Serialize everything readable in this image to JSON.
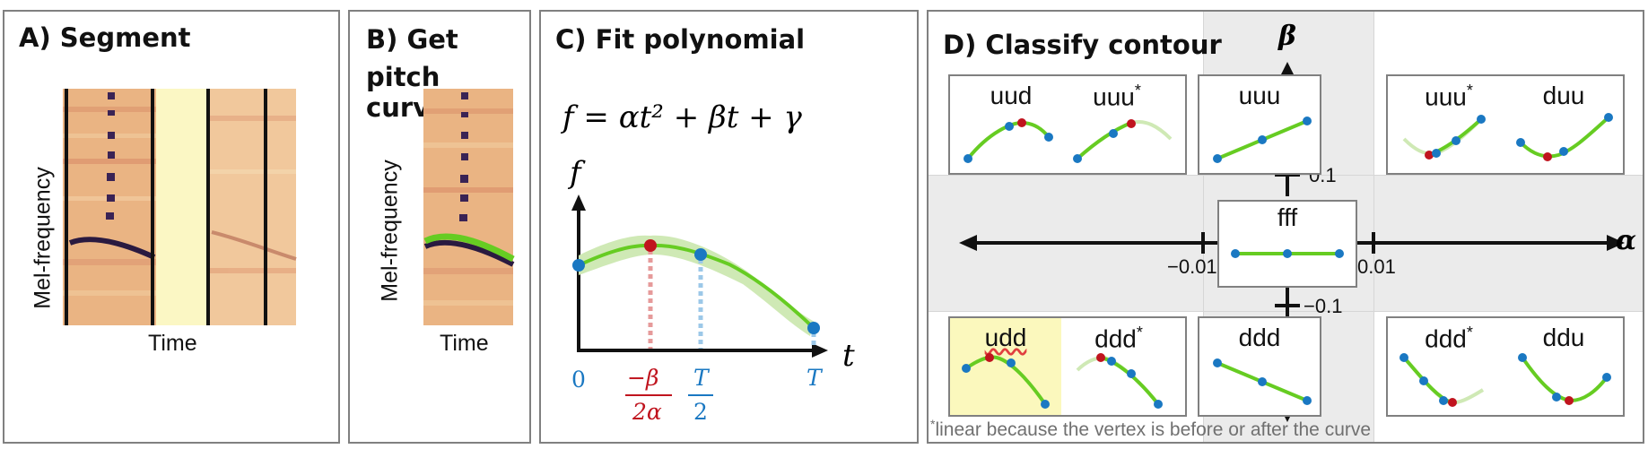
{
  "panels": {
    "a": {
      "title": "A) Segment",
      "ylabel": "Mel-frequency",
      "xlabel": "Time"
    },
    "b": {
      "title_line1": "B) Get",
      "title_line2": "pitch curve",
      "ylabel": "Mel-frequency",
      "xlabel": "Time"
    },
    "c": {
      "title": "C) Fit polynomial",
      "equation": "f = αt² + βt + γ",
      "axis_f": "f",
      "axis_t": "t",
      "tick_zero": "0",
      "tick_vertex_num": "−β",
      "tick_vertex_den": "2α",
      "tick_half_num": "T",
      "tick_half_den": "2",
      "tick_end": "T",
      "colors": {
        "curve": "#66cc22",
        "band": "#cfe9b5",
        "blue": "#1a78c2",
        "red": "#c0141e"
      }
    },
    "d": {
      "title": "D) Classify contour",
      "axis_alpha": "α",
      "axis_beta": "β",
      "tick_alpha_neg": "−0.01",
      "tick_alpha_pos": "0.01",
      "tick_beta_pos": "0.1",
      "tick_beta_neg": "−0.1",
      "cells": {
        "top_left_a": "uud",
        "top_left_b": "uuu",
        "top_left_b_mark": "*",
        "top_center": "uuu",
        "top_right_a": "uuu",
        "top_right_a_mark": "*",
        "top_right_b": "duu",
        "center": "fff",
        "bottom_left_a": "udd",
        "bottom_left_b": "ddd",
        "bottom_left_b_mark": "*",
        "bottom_center": "ddd",
        "bottom_right_a": "ddd",
        "bottom_right_a_mark": "*",
        "bottom_right_b": "ddu"
      },
      "footnote_mark": "*",
      "footnote": "linear because the vertex is before or after the curve",
      "colors": {
        "highlight": "#fbf8bd",
        "shade": "#ebebeb"
      }
    }
  }
}
